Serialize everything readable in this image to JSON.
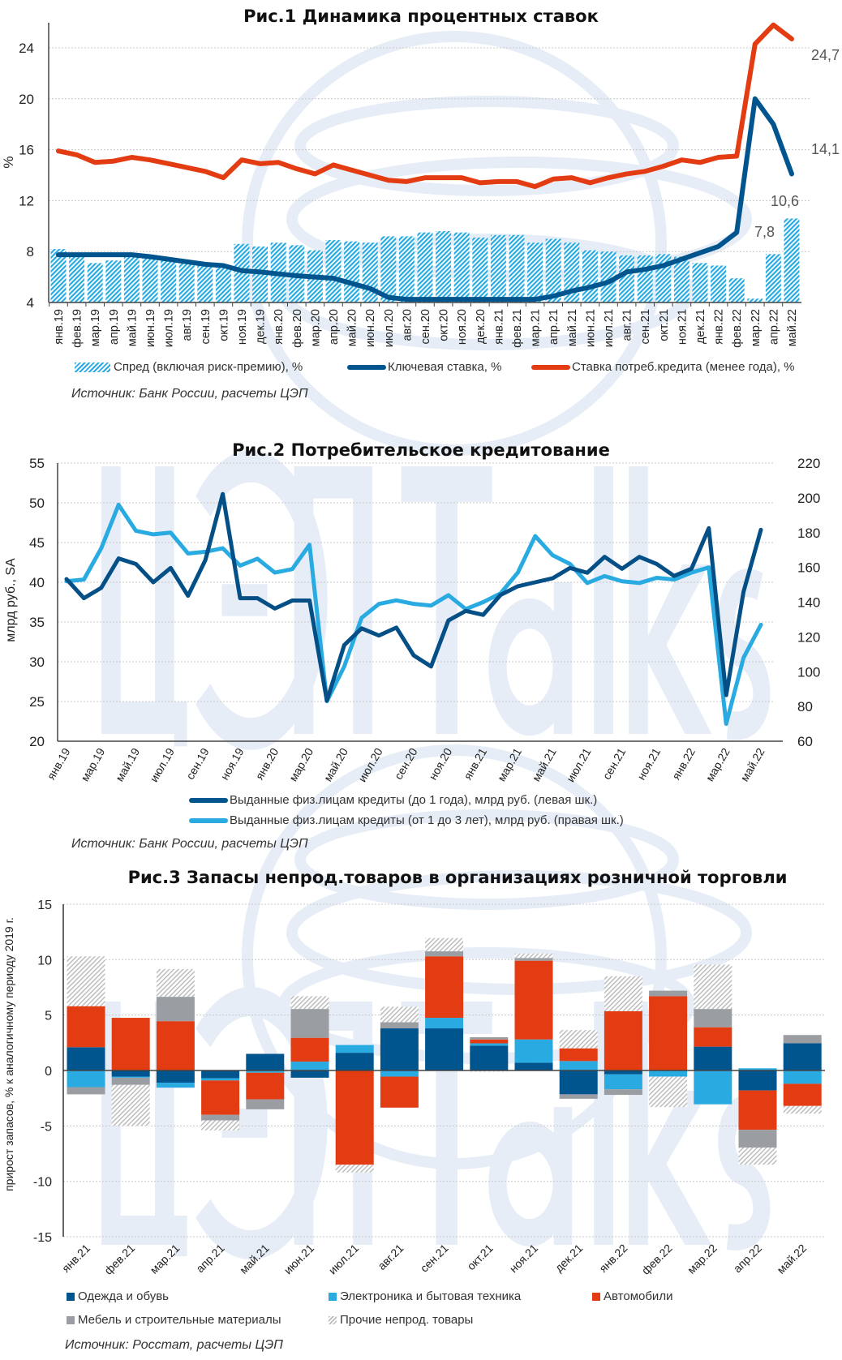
{
  "watermark": {
    "text": "ЦЭП Talks",
    "color": "#e7edf6"
  },
  "colors": {
    "red": "#e33b12",
    "dark_blue": "#00558f",
    "light_blue": "#29abe2",
    "grey": "#9a9da2",
    "hatch_grey": "#b8b8b8"
  },
  "fig1": {
    "title": "Рис.1 Динамика процентных ставок",
    "source": "Источник: Банк России, расчеты ЦЭП",
    "legend": [
      "Спред (включая риск-премию), %",
      "Ключевая ставка, %",
      "Ставка потреб.кредита (менее года), %"
    ]
  },
  "fig2": {
    "title": "Рис.2 Потребительское кредитование",
    "source": "Источник: Банк России, расчеты ЦЭП",
    "legend": [
      "Выданные физ.лицам кредиты (до 1 года), млрд руб. (левая шк.)",
      "Выданные физ.лицам кредиты (от 1 до 3 лет), млрд руб. (правая шк.)"
    ]
  },
  "fig3": {
    "title": "Рис.3 Запасы непрод.товаров в организациях розничной торговли",
    "source": "Источник: Росстат, расчеты ЦЭП",
    "legend": [
      "Одежда и обувь",
      "Электроника и бытовая техника",
      "Автомобили",
      "Мебель и строительные материалы",
      "Прочие непрод. товары"
    ]
  },
  "chart_data": [
    {
      "type": "bar+line",
      "title": "Рис.1 Динамика процентных ставок",
      "ylabel": "%",
      "ylim": [
        4,
        26
      ],
      "yticks": [
        4,
        8,
        12,
        16,
        20,
        24
      ],
      "grid": true,
      "legend_position": "bottom",
      "categories": [
        "янв.19",
        "фев.19",
        "мар.19",
        "апр.19",
        "май.19",
        "июн.19",
        "июл.19",
        "авг.19",
        "сен.19",
        "окт.19",
        "ноя.19",
        "дек.19",
        "янв.20",
        "фев.20",
        "мар.20",
        "апр.20",
        "май.20",
        "июн.20",
        "июл.20",
        "авг.20",
        "сен.20",
        "окт.20",
        "ноя.20",
        "дек.20",
        "янв.21",
        "фев.21",
        "мар.21",
        "апр.21",
        "май.21",
        "июн.21",
        "июл.21",
        "авг.21",
        "сен.21",
        "окт.21",
        "ноя.21",
        "дек.21",
        "янв.22",
        "фев.22",
        "мар.22",
        "апр.22",
        "май.22"
      ],
      "series": [
        {
          "name": "Спред (включая риск-премию), %",
          "kind": "bar",
          "values": [
            8.2,
            7.7,
            7.1,
            7.3,
            7.6,
            7.6,
            7.4,
            7.2,
            7.1,
            6.9,
            8.6,
            8.4,
            8.7,
            8.5,
            8.1,
            8.9,
            8.8,
            8.7,
            9.2,
            9.2,
            9.5,
            9.6,
            9.5,
            9.1,
            9.3,
            9.3,
            8.7,
            9.0,
            8.7,
            8.1,
            8.0,
            7.7,
            7.7,
            7.8,
            7.6,
            7.1,
            6.9,
            5.9,
            4.3,
            7.8,
            10.6
          ]
        },
        {
          "name": "Ключевая ставка, %",
          "kind": "line",
          "values": [
            7.75,
            7.75,
            7.75,
            7.75,
            7.75,
            7.6,
            7.4,
            7.2,
            7.0,
            6.9,
            6.5,
            6.4,
            6.25,
            6.1,
            6.0,
            5.9,
            5.5,
            5.1,
            4.4,
            4.25,
            4.25,
            4.25,
            4.25,
            4.25,
            4.25,
            4.25,
            4.25,
            4.5,
            4.9,
            5.2,
            5.6,
            6.4,
            6.6,
            6.9,
            7.4,
            7.9,
            8.4,
            9.5,
            20.0,
            18.0,
            14.1
          ]
        },
        {
          "name": "Ставка потреб.кредита (менее года), %",
          "kind": "line",
          "values": [
            15.9,
            15.6,
            15.0,
            15.1,
            15.4,
            15.2,
            14.9,
            14.6,
            14.3,
            13.8,
            15.2,
            14.9,
            15.0,
            14.5,
            14.1,
            14.8,
            14.4,
            14.0,
            13.6,
            13.5,
            13.8,
            13.8,
            13.8,
            13.4,
            13.5,
            13.5,
            13.1,
            13.7,
            13.8,
            13.4,
            13.8,
            14.1,
            14.3,
            14.7,
            15.2,
            15.0,
            15.4,
            15.5,
            24.3,
            25.8,
            24.7
          ]
        }
      ],
      "data_labels": [
        {
          "series": 2,
          "index": 40,
          "text": "24,7"
        },
        {
          "series": 1,
          "index": 40,
          "text": "14,1"
        },
        {
          "series": 0,
          "index": 40,
          "text": "10,6"
        },
        {
          "series": 0,
          "index": 39,
          "text": "7,8"
        }
      ]
    },
    {
      "type": "line",
      "title": "Рис.2 Потребительское кредитование",
      "ylabel": "млрд руб., SA",
      "ylim": [
        20,
        55
      ],
      "yticks": [
        20,
        25,
        30,
        35,
        40,
        45,
        50,
        55
      ],
      "y2lim": [
        60,
        220
      ],
      "y2ticks": [
        60,
        80,
        100,
        120,
        140,
        160,
        180,
        200,
        220
      ],
      "grid": true,
      "legend_position": "bottom",
      "x_range": [
        "янв.19",
        "май.22"
      ],
      "x_tick_labels": [
        "янв.19",
        "мар.19",
        "май.19",
        "июл.19",
        "сен.19",
        "ноя.19",
        "янв.20",
        "мар.20",
        "май.20",
        "июл.20",
        "сен.20",
        "ноя.20",
        "янв.21",
        "мар.21",
        "май.21",
        "июл.21",
        "сен.21",
        "ноя.21",
        "янв.22",
        "мар.22",
        "май.22"
      ],
      "series": [
        {
          "name": "Выданные физ.лицам кредиты (до 1 года), млрд руб. (левая шк.)",
          "axis": "left",
          "values": [
            40.4,
            38.0,
            39.3,
            43.0,
            42.3,
            40.0,
            41.8,
            38.3,
            42.8,
            51.1,
            38.0,
            38.0,
            36.7,
            37.7,
            37.7,
            25.1,
            32.1,
            34.2,
            33.3,
            34.3,
            30.8,
            29.4,
            35.2,
            36.4,
            35.9,
            38.4,
            39.5,
            40.0,
            40.5,
            41.8,
            41.2,
            43.2,
            41.7,
            43.2,
            42.3,
            40.8,
            41.7,
            46.8,
            25.8,
            38.8,
            46.6
          ]
        },
        {
          "name": "Выданные физ.лицам кредиты (от 1 до 3 лет), млрд руб. (правая шк.)",
          "axis": "right",
          "values": [
            152,
            153,
            171,
            196,
            181,
            179,
            180,
            168,
            169,
            171,
            161,
            165,
            157,
            159,
            173,
            83,
            103,
            131,
            139,
            141,
            139,
            138,
            144,
            136,
            140,
            145,
            157,
            178,
            167,
            162,
            151,
            155,
            152,
            151,
            154,
            153,
            157,
            160,
            70,
            108,
            127
          ]
        }
      ]
    },
    {
      "type": "bar",
      "stacked": true,
      "title": "Рис.3 Запасы непрод.товаров в организациях розничной торговли",
      "ylabel": "прирост запасов, % к аналогичному периоду 2019 г.",
      "ylim": [
        -15,
        15
      ],
      "yticks": [
        -15,
        -10,
        -5,
        0,
        5,
        10,
        15
      ],
      "grid": true,
      "legend_position": "bottom",
      "categories": [
        "янв.21",
        "фев.21",
        "мар.21",
        "апр.21",
        "май.21",
        "июн.21",
        "июл.21",
        "авг.21",
        "сен.21",
        "окт.21",
        "ноя.21",
        "дек.21",
        "янв.22",
        "фев.22",
        "мар.22",
        "апр.22",
        "май.22"
      ],
      "series": [
        {
          "name": "Одежда и обувь",
          "values": [
            2.1,
            -0.55,
            -1.1,
            -0.7,
            1.5,
            -0.65,
            1.6,
            3.8,
            3.8,
            2.25,
            0.7,
            -2.15,
            -0.35,
            0,
            2.15,
            -1.8,
            2.45
          ]
        },
        {
          "name": "Электроника и бытовая техника",
          "values": [
            -1.5,
            -0.1,
            -0.45,
            -0.2,
            -0.2,
            0.8,
            0.7,
            -0.55,
            0.95,
            0.2,
            2.1,
            0.85,
            -1.35,
            -0.55,
            -3.05,
            0.2,
            -1.2
          ]
        },
        {
          "name": "Автомобили",
          "values": [
            3.7,
            4.75,
            4.45,
            -3.1,
            -2.4,
            2.15,
            -8.5,
            -2.8,
            5.55,
            0.35,
            7.1,
            1.15,
            5.35,
            6.7,
            1.75,
            -3.55,
            -2.0
          ]
        },
        {
          "name": "Мебель и строительные материалы",
          "values": [
            -0.65,
            -0.65,
            2.2,
            -0.5,
            -0.9,
            2.6,
            0,
            0.55,
            0.45,
            0.2,
            0.25,
            -0.4,
            -0.5,
            0.5,
            1.65,
            -1.6,
            0.75
          ]
        },
        {
          "name": "Прочие непрод. товары",
          "values": [
            4.5,
            -3.7,
            2.5,
            -0.9,
            0,
            1.15,
            -0.7,
            1.4,
            1.2,
            -0.1,
            0.4,
            1.65,
            3.15,
            -2.75,
            4.0,
            -1.55,
            -0.7
          ]
        }
      ]
    }
  ]
}
